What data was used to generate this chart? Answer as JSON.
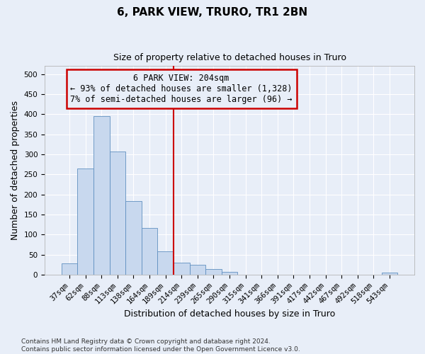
{
  "title1": "6, PARK VIEW, TRURO, TR1 2BN",
  "title2": "Size of property relative to detached houses in Truro",
  "xlabel": "Distribution of detached houses by size in Truro",
  "ylabel": "Number of detached properties",
  "footnote": "Contains HM Land Registry data © Crown copyright and database right 2024.\nContains public sector information licensed under the Open Government Licence v3.0.",
  "bar_labels": [
    "37sqm",
    "62sqm",
    "88sqm",
    "113sqm",
    "138sqm",
    "164sqm",
    "189sqm",
    "214sqm",
    "239sqm",
    "265sqm",
    "290sqm",
    "315sqm",
    "341sqm",
    "366sqm",
    "391sqm",
    "417sqm",
    "442sqm",
    "467sqm",
    "492sqm",
    "518sqm",
    "543sqm"
  ],
  "bar_values": [
    28,
    264,
    395,
    307,
    183,
    116,
    58,
    30,
    25,
    15,
    8,
    0,
    0,
    0,
    0,
    0,
    0,
    0,
    0,
    0,
    5
  ],
  "bar_color": "#c8d8ee",
  "bar_edge_color": "#6090c0",
  "vline_x_index": 7,
  "vline_color": "#cc0000",
  "annotation_text": "6 PARK VIEW: 204sqm\n← 93% of detached houses are smaller (1,328)\n7% of semi-detached houses are larger (96) →",
  "annotation_box_color": "#cc0000",
  "ylim": [
    0,
    520
  ],
  "yticks": [
    0,
    50,
    100,
    150,
    200,
    250,
    300,
    350,
    400,
    450,
    500
  ],
  "bg_color": "#e8eef8",
  "plot_bg_color": "#e8eef8",
  "grid_color": "#ffffff",
  "title_fontsize": 11,
  "subtitle_fontsize": 9,
  "tick_fontsize": 7.5,
  "label_fontsize": 9,
  "ann_fontsize": 8.5,
  "footnote_fontsize": 6.5
}
